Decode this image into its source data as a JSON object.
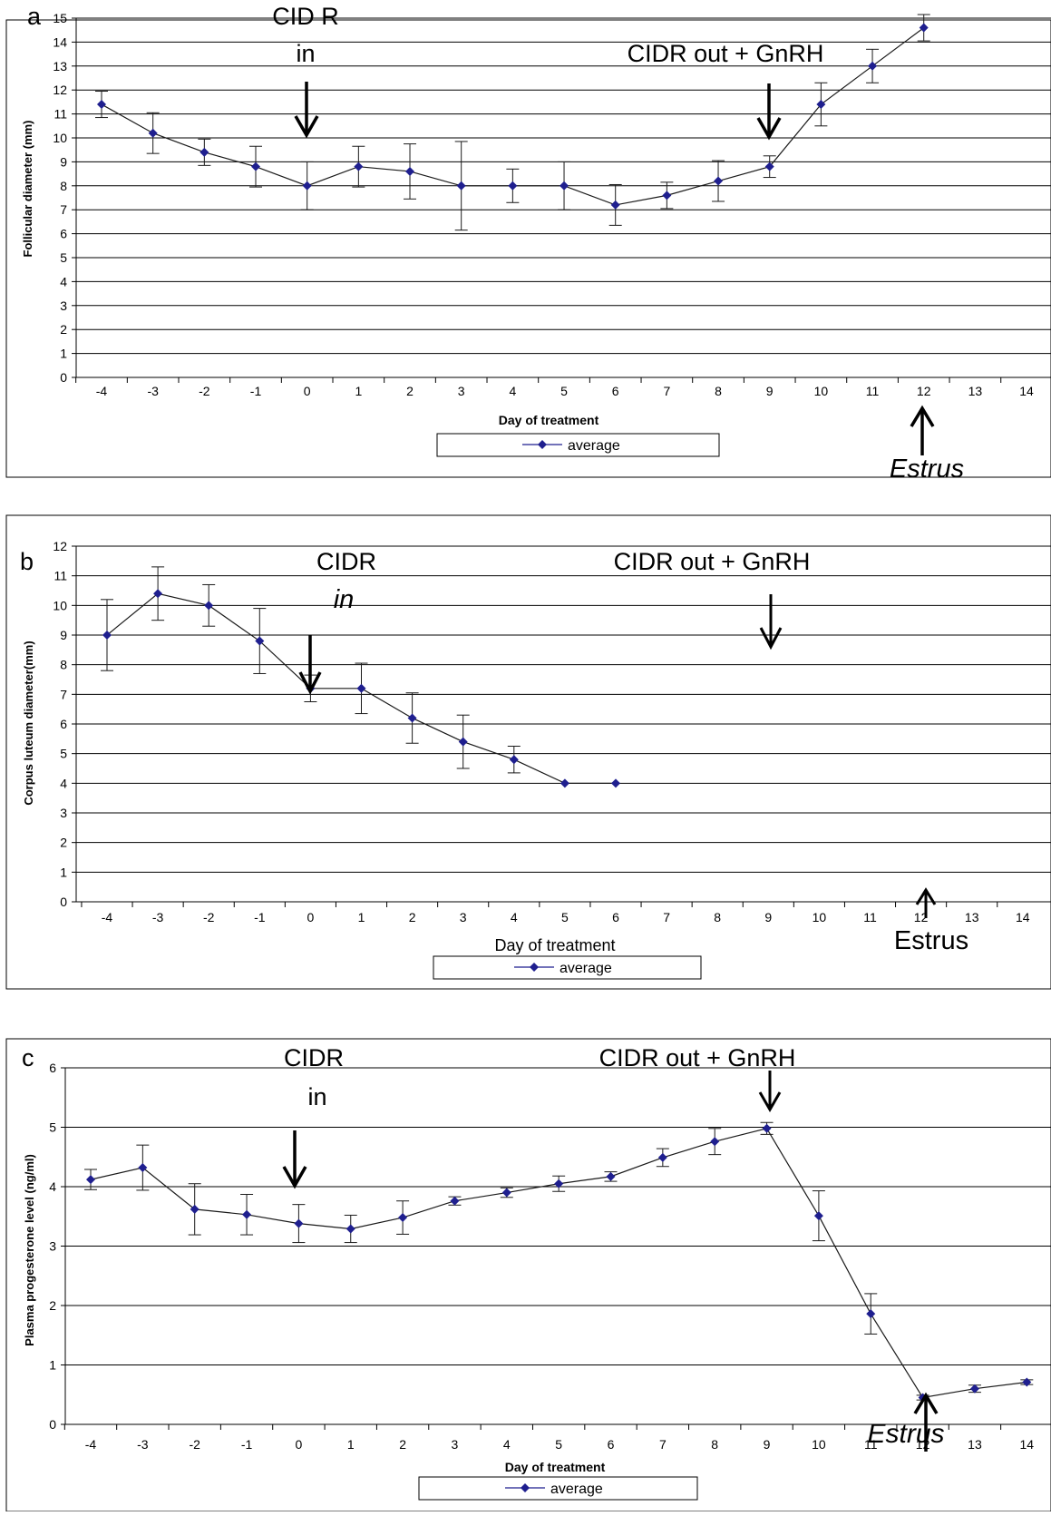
{
  "chart_data": [
    {
      "type": "line",
      "panel_label": "a",
      "xlabel": "Day of treatment",
      "ylabel": "Follicular diameter (mm)",
      "x": [
        -4,
        -3,
        -2,
        -1,
        0,
        1,
        2,
        3,
        4,
        5,
        6,
        7,
        8,
        9,
        10,
        11,
        12,
        13,
        14
      ],
      "ylim": [
        0,
        15
      ],
      "yticks": [
        0,
        1,
        2,
        3,
        4,
        5,
        6,
        7,
        8,
        9,
        10,
        11,
        12,
        13,
        14,
        15
      ],
      "grid": true,
      "legend": "bottom-center",
      "series": [
        {
          "name": "average",
          "color": "#1f1f8f",
          "x": [
            -4,
            -3,
            -2,
            -1,
            0,
            1,
            2,
            3,
            4,
            5,
            6,
            7,
            8,
            9,
            10,
            11,
            12
          ],
          "values": [
            11.4,
            10.2,
            9.4,
            8.8,
            8.0,
            8.8,
            8.6,
            8.0,
            8.0,
            8.0,
            7.2,
            7.6,
            8.2,
            8.8,
            11.4,
            13.0,
            14.6
          ],
          "error": [
            0.55,
            0.85,
            0.55,
            0.85,
            1.0,
            0.85,
            1.15,
            1.85,
            0.7,
            1.0,
            0.85,
            0.55,
            0.85,
            0.45,
            0.9,
            0.7,
            0.55
          ]
        }
      ],
      "annotations": [
        {
          "text": "CID R",
          "at_x": 0,
          "style": "normal"
        },
        {
          "text": "in",
          "at_x": 0,
          "style": "normal"
        },
        {
          "text": "CIDR out   + GnRH",
          "at_x": 9,
          "style": "normal"
        },
        {
          "text": "Estrus",
          "at_x": 12,
          "style": "italic"
        }
      ]
    },
    {
      "type": "line",
      "panel_label": "b",
      "xlabel": "Day of treatment",
      "ylabel": "Corpus luteum diameter(mm)",
      "x": [
        -4,
        -3,
        -2,
        -1,
        0,
        1,
        2,
        3,
        4,
        5,
        6,
        7,
        8,
        9,
        10,
        11,
        12,
        13,
        14
      ],
      "ylim": [
        0,
        12
      ],
      "yticks": [
        0,
        1,
        2,
        3,
        4,
        5,
        6,
        7,
        8,
        9,
        10,
        11,
        12
      ],
      "grid": true,
      "legend": "bottom-center",
      "series": [
        {
          "name": "average",
          "color": "#1f1f8f",
          "x": [
            -4,
            -3,
            -2,
            -1,
            0,
            1,
            2,
            3,
            4,
            5,
            6
          ],
          "values": [
            9.0,
            10.4,
            10.0,
            8.8,
            7.2,
            7.2,
            6.2,
            5.4,
            4.8,
            4.0,
            4.0
          ],
          "error": [
            1.2,
            0.9,
            0.7,
            1.1,
            0.45,
            0.85,
            0.85,
            0.9,
            0.45,
            0,
            0
          ]
        }
      ],
      "annotations": [
        {
          "text": "CIDR",
          "at_x": 0,
          "style": "normal"
        },
        {
          "text": "in",
          "at_x": 0,
          "style": "italic"
        },
        {
          "text": "CIDR  out + GnRH",
          "at_x": 9,
          "style": "normal"
        },
        {
          "text": "Estrus",
          "at_x": 12,
          "style": "normal"
        }
      ]
    },
    {
      "type": "line",
      "panel_label": "c",
      "xlabel": "Day of treatment",
      "ylabel": "Plasma progesterone level (ng/ml)",
      "x": [
        -4,
        -3,
        -2,
        -1,
        0,
        1,
        2,
        3,
        4,
        5,
        6,
        7,
        8,
        9,
        10,
        11,
        12,
        13,
        14
      ],
      "ylim": [
        0,
        6
      ],
      "yticks": [
        0,
        1,
        2,
        3,
        4,
        5,
        6
      ],
      "grid": true,
      "legend": "bottom-center",
      "series": [
        {
          "name": "average",
          "color": "#1f1f8f",
          "x": [
            -4,
            -3,
            -2,
            -1,
            0,
            1,
            2,
            3,
            4,
            5,
            6,
            7,
            8,
            9,
            10,
            11,
            12,
            13,
            14
          ],
          "values": [
            4.12,
            4.32,
            3.62,
            3.53,
            3.38,
            3.29,
            3.48,
            3.76,
            3.9,
            4.05,
            4.17,
            4.49,
            4.76,
            4.98,
            3.51,
            1.86,
            0.45,
            0.6,
            0.71
          ],
          "error": [
            0.17,
            0.38,
            0.43,
            0.34,
            0.32,
            0.23,
            0.28,
            0.07,
            0.08,
            0.13,
            0.08,
            0.15,
            0.22,
            0.1,
            0.42,
            0.34,
            0.04,
            0.06,
            0.04
          ]
        }
      ],
      "annotations": [
        {
          "text": "CIDR",
          "at_x": 0,
          "style": "normal"
        },
        {
          "text": "in",
          "at_x": 0,
          "style": "normal"
        },
        {
          "text": "CIDR out  + GnRH",
          "at_x": 9,
          "style": "normal"
        },
        {
          "text": "Estrus",
          "at_x": 12,
          "style": "italic"
        }
      ]
    }
  ]
}
